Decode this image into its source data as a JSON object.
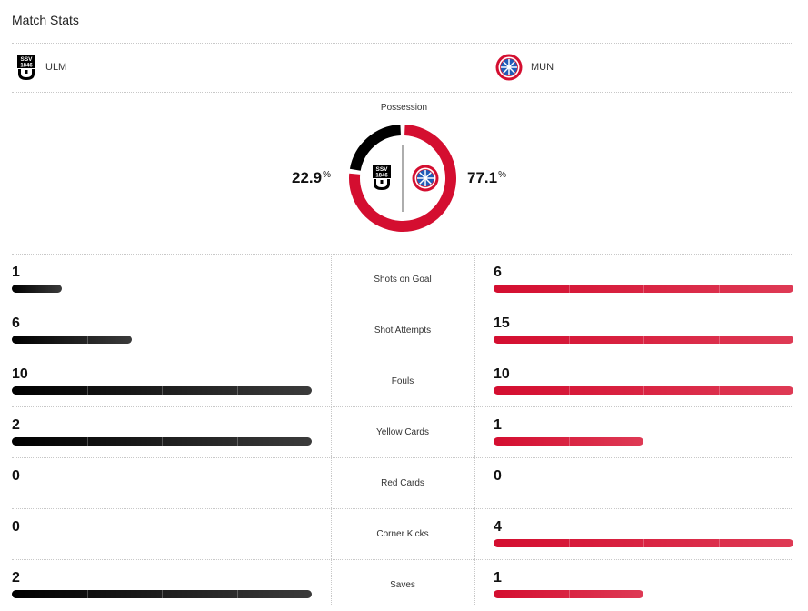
{
  "header": {
    "title": "Match Stats"
  },
  "teams": {
    "home": {
      "abbr": "ULM",
      "logo_icon": "ssv-ulm-1846-crest",
      "color": "#000000"
    },
    "away": {
      "abbr": "MUN",
      "logo_icon": "fc-bayern-munchen-crest",
      "color": "#d40e30"
    }
  },
  "possession": {
    "label": "Possession",
    "home_value": "22.9",
    "away_value": "77.1",
    "unit": "%",
    "home_share": 0.229
  },
  "stats": [
    {
      "label": "Shots on Goal",
      "home": "1",
      "away": "6",
      "home_fill": 0.167,
      "away_fill": 1.0
    },
    {
      "label": "Shot Attempts",
      "home": "6",
      "away": "15",
      "home_fill": 0.4,
      "away_fill": 1.0
    },
    {
      "label": "Fouls",
      "home": "10",
      "away": "10",
      "home_fill": 1.0,
      "away_fill": 1.0
    },
    {
      "label": "Yellow Cards",
      "home": "2",
      "away": "1",
      "home_fill": 1.0,
      "away_fill": 0.5
    },
    {
      "label": "Red Cards",
      "home": "0",
      "away": "0",
      "home_fill": 0,
      "away_fill": 0
    },
    {
      "label": "Corner Kicks",
      "home": "0",
      "away": "4",
      "home_fill": 0,
      "away_fill": 1.0
    },
    {
      "label": "Saves",
      "home": "2",
      "away": "1",
      "home_fill": 1.0,
      "away_fill": 0.5
    }
  ]
}
